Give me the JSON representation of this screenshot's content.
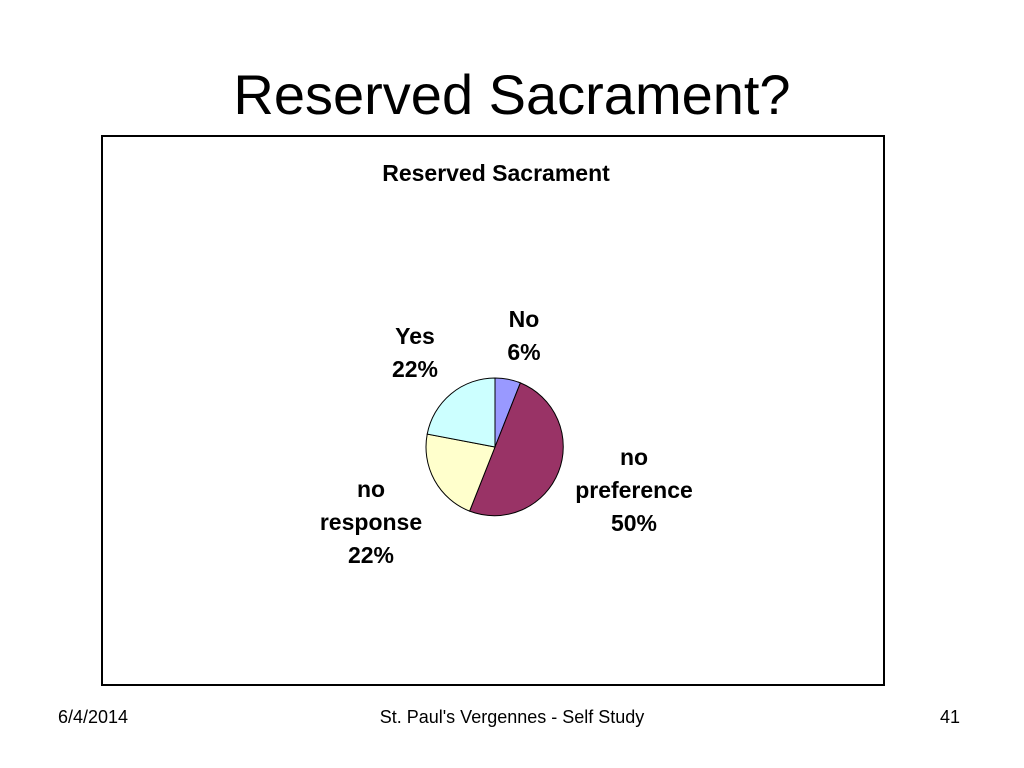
{
  "slide": {
    "title": "Reserved Sacrament?",
    "footer_date": "6/4/2014",
    "footer_center": "St. Paul's Vergennes - Self Study",
    "page_number": "41"
  },
  "chart_data": {
    "type": "pie",
    "title": "Reserved Sacrament",
    "start_angle_deg": 0,
    "direction": "clockwise",
    "slices": [
      {
        "label": "No",
        "value": 6,
        "value_label": "6%",
        "color": "#9999FF"
      },
      {
        "label": "no preference",
        "value": 50,
        "value_label": "50%",
        "color": "#993366"
      },
      {
        "label": "no response",
        "value": 22,
        "value_label": "22%",
        "color": "#FFFFCC"
      },
      {
        "label": "Yes",
        "value": 22,
        "value_label": "22%",
        "color": "#CCFFFF"
      }
    ]
  }
}
